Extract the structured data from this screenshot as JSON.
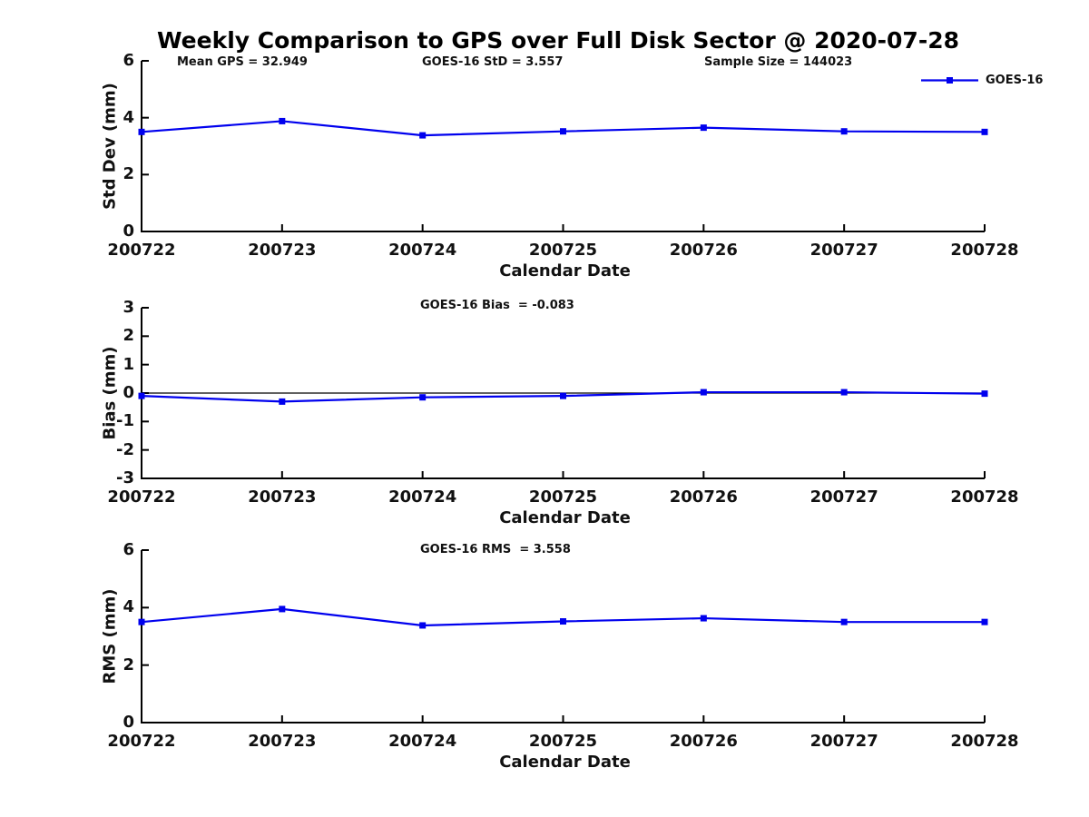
{
  "title": "Weekly Comparison to GPS over Full Disk Sector @ 2020-07-28",
  "header_annotations": {
    "mean_gps": "Mean GPS = 32.949",
    "goes16_std": "GOES-16 StD = 3.557",
    "sample_size": "Sample Size = 144023"
  },
  "legend": {
    "label": "GOES-16",
    "color": "#0000EE",
    "position": "top-right",
    "marker": "square"
  },
  "colors": {
    "series_blue": "#0000EE",
    "axis_black": "#000000",
    "text_black": "#111111"
  },
  "chart_data": [
    {
      "type": "line",
      "title": "",
      "annotation": "",
      "categories": [
        "200722",
        "200723",
        "200724",
        "200725",
        "200726",
        "200727",
        "200728"
      ],
      "series": [
        {
          "name": "GOES-16",
          "color": "#0000EE",
          "marker": "square",
          "values": [
            3.5,
            3.88,
            3.38,
            3.52,
            3.65,
            3.52,
            3.5
          ]
        }
      ],
      "xlabel": "Calendar Date",
      "ylabel": "Std Dev (mm)",
      "ylim": [
        0,
        6
      ],
      "yticks": [
        0,
        2,
        4,
        6
      ],
      "grid": false,
      "zero_line": false
    },
    {
      "type": "line",
      "title": "",
      "annotation": "GOES-16 Bias  = -0.083",
      "categories": [
        "200722",
        "200723",
        "200724",
        "200725",
        "200726",
        "200727",
        "200728"
      ],
      "series": [
        {
          "name": "GOES-16",
          "color": "#0000EE",
          "marker": "square",
          "values": [
            -0.1,
            -0.3,
            -0.15,
            -0.1,
            0.03,
            0.03,
            -0.02
          ]
        }
      ],
      "xlabel": "Calendar Date",
      "ylabel": "Bias (mm)",
      "ylim": [
        -3,
        3
      ],
      "yticks": [
        -3,
        -2,
        -1,
        0,
        1,
        2,
        3
      ],
      "grid": false,
      "zero_line": true
    },
    {
      "type": "line",
      "title": "",
      "annotation": "GOES-16 RMS  = 3.558",
      "categories": [
        "200722",
        "200723",
        "200724",
        "200725",
        "200726",
        "200727",
        "200728"
      ],
      "series": [
        {
          "name": "GOES-16",
          "color": "#0000EE",
          "marker": "square",
          "values": [
            3.5,
            3.95,
            3.38,
            3.52,
            3.63,
            3.5,
            3.5
          ]
        }
      ],
      "xlabel": "Calendar Date",
      "ylabel": "RMS (mm)",
      "ylim": [
        0,
        6
      ],
      "yticks": [
        0,
        2,
        4,
        6
      ],
      "grid": false,
      "zero_line": false
    }
  ]
}
